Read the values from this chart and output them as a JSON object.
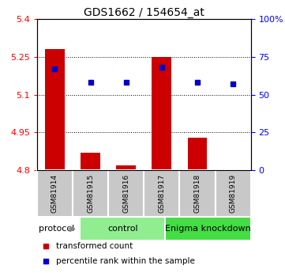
{
  "title": "GDS1662 / 154654_at",
  "samples": [
    "GSM81914",
    "GSM81915",
    "GSM81916",
    "GSM81917",
    "GSM81918",
    "GSM81919"
  ],
  "red_values": [
    5.28,
    4.87,
    4.82,
    5.25,
    4.93,
    4.801
  ],
  "blue_values": [
    67,
    58,
    58,
    68,
    58,
    57
  ],
  "y_min": 4.8,
  "y_max": 5.4,
  "y_ticks_left": [
    4.8,
    4.95,
    5.1,
    5.25,
    5.4
  ],
  "y_ticks_right": [
    0,
    25,
    50,
    75,
    100
  ],
  "groups": [
    {
      "label": "control",
      "start": 0,
      "end": 3,
      "color": "#90EE90"
    },
    {
      "label": "Enigma knockdown",
      "start": 3,
      "end": 6,
      "color": "#44DD44"
    }
  ],
  "legend_items": [
    {
      "color": "#CC0000",
      "label": "transformed count"
    },
    {
      "color": "#0000CC",
      "label": "percentile rank within the sample"
    }
  ],
  "bar_color": "#CC0000",
  "dot_color": "#0000CC",
  "sample_box_color": "#C8C8C8",
  "title_fontsize": 10,
  "axis_fontsize": 8,
  "sample_fontsize": 6.5,
  "group_fontsize": 8,
  "legend_fontsize": 7.5
}
